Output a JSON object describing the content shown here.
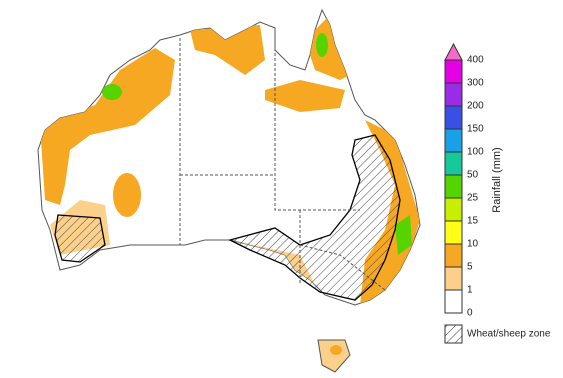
{
  "legend": {
    "title": "Rainfall (mm)",
    "ticks": [
      400,
      300,
      200,
      150,
      100,
      50,
      25,
      15,
      10,
      5,
      1,
      0
    ],
    "colors": [
      "#f56cc8",
      "#e600e6",
      "#9a2be6",
      "#3a4fe6",
      "#1aa0e6",
      "#19c89a",
      "#56d400",
      "#c8ee00",
      "#ffff1a",
      "#f7a823",
      "#fbd08a",
      "#ffffff"
    ]
  },
  "zone_label": "Wheat/sheep zone"
}
